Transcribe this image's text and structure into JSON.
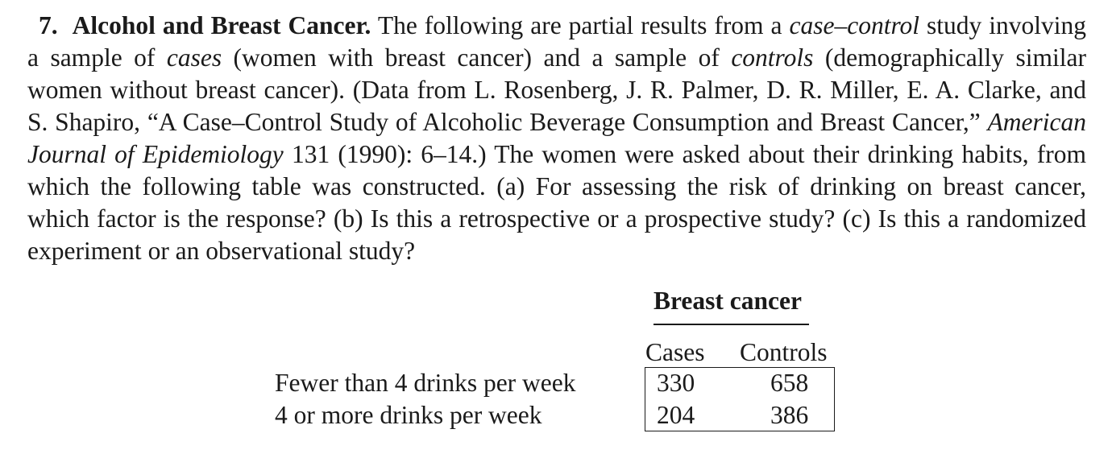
{
  "problem": {
    "number": "7.",
    "title": "Alcohol and Breast Cancer.",
    "seg1": " The following are partial results from a ",
    "seg1_italic": "case–control",
    "seg2": " study involving a sample of ",
    "seg2_italic": "cases",
    "seg3": " (women with breast cancer) and a sample of ",
    "seg3_italic": "controls",
    "seg4": " (demographically similar women without breast cancer). (Data from L. Rosenberg, J. R. Palmer, D. R. Miller, E. A. Clarke, and S. Shapiro, “A Case–Control Study of Alcoholic Beverage Consumption and Breast Cancer,” ",
    "seg4_italic": "American Journal of Epidemiology",
    "seg5": " 131 (1990): 6–14.) The women were asked about their drinking habits, from which the following table was constructed. (a) For assessing the risk of drinking on breast cancer, which factor is the response? (b) Is this a retrospective or a prospective study? (c) Is this a randomized experiment or an observational study?"
  },
  "table": {
    "header": "Breast cancer",
    "columns": [
      "Cases",
      "Controls"
    ],
    "rows": [
      {
        "label": "Fewer than 4 drinks per week",
        "values": [
          "330",
          "658"
        ]
      },
      {
        "label": "4 or more drinks per week",
        "values": [
          "204",
          "386"
        ]
      }
    ]
  }
}
